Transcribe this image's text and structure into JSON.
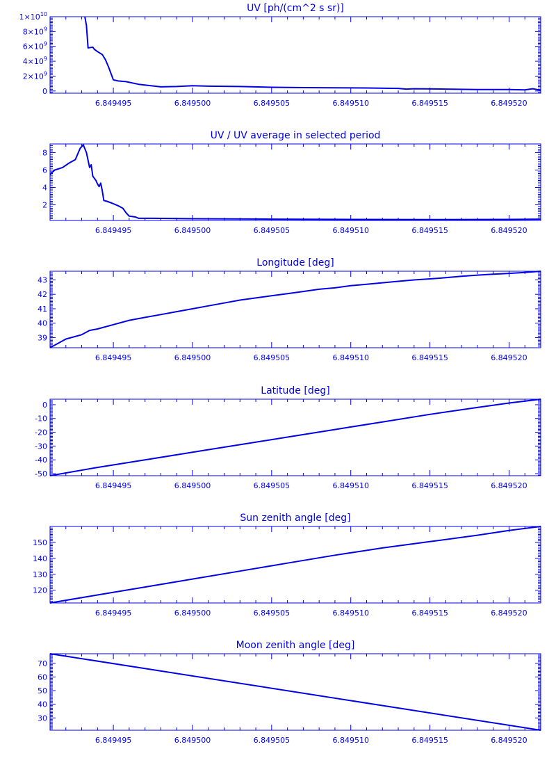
{
  "colors": {
    "axis": "#0000e6",
    "series": "#0000e6",
    "background": "#ffffff"
  },
  "chart_data": [
    {
      "type": "line",
      "title": "UV [ph/(cm^2 s sr)]",
      "xlim": [
        6.849491,
        6.849522
      ],
      "ylim": [
        -0.3,
        10
      ],
      "ytick_values": [
        0,
        2,
        4,
        6,
        8,
        10
      ],
      "ytick_labels": [
        "0",
        "2×10⁹",
        "4×10⁹",
        "6×10⁹",
        "8×10⁹",
        "1×10¹⁰"
      ],
      "xticks": [
        "6.849495",
        "6.849500",
        "6.849505",
        "6.849510",
        "6.849515",
        "6.849520"
      ],
      "series": [
        {
          "x": [
            6.8494932,
            6.8494932,
            6.8494933,
            6.8494933,
            6.8494934,
            6.8494934,
            6.8494937,
            6.8494937,
            6.8494938,
            6.8494938,
            6.849494,
            6.849494,
            6.8494943,
            6.8494943,
            6.8494945,
            6.8494945,
            6.8494947,
            6.8494947,
            6.849495,
            6.849495,
            6.8494953,
            6.8494953,
            6.8494958,
            6.8494958,
            6.8494966,
            6.8494966,
            6.849498,
            6.849499,
            6.8495,
            6.849501,
            6.849503,
            6.849505,
            6.849507,
            6.849509,
            6.849511,
            6.849513,
            6.8495135,
            6.849514,
            6.849516,
            6.849518,
            6.84952,
            6.849521,
            6.8495215,
            6.849522
          ],
          "y": [
            10,
            10,
            8.8,
            8.8,
            5.8,
            5.8,
            5.9,
            5.9,
            5.6,
            5.6,
            5.3,
            5.3,
            4.9,
            4.9,
            4.2,
            4.2,
            3.2,
            3.2,
            1.5,
            1.5,
            1.35,
            1.35,
            1.25,
            1.25,
            0.9,
            0.9,
            0.55,
            0.6,
            0.7,
            0.65,
            0.6,
            0.5,
            0.45,
            0.42,
            0.4,
            0.35,
            0.25,
            0.3,
            0.25,
            0.2,
            0.2,
            0.15,
            0.3,
            0.1
          ]
        }
      ]
    },
    {
      "type": "line",
      "title": "UV / UV average in selected period",
      "xlim": [
        6.849491,
        6.849522
      ],
      "ylim": [
        0.2,
        9
      ],
      "ytick_values": [
        2,
        4,
        6,
        8
      ],
      "ytick_labels": [
        "2",
        "4",
        "6",
        "8"
      ],
      "xticks": [
        "6.849495",
        "6.849500",
        "6.849505",
        "6.849510",
        "6.849515",
        "6.849520"
      ],
      "series": [
        {
          "x": [
            6.849491,
            6.8494913,
            6.8494918,
            6.8494922,
            6.8494926,
            6.8494929,
            6.8494931,
            6.8494933,
            6.8494935,
            6.8494936,
            6.8494937,
            6.8494939,
            6.849494,
            6.8494941,
            6.8494942,
            6.8494943,
            6.8494944,
            6.8494946,
            6.8494949,
            6.8494953,
            6.8494956,
            6.8494958,
            6.849496,
            6.8494964,
            6.8494966,
            6.8494975,
            6.8495,
            6.849505,
            6.84951,
            6.849515,
            6.84952,
            6.849522
          ],
          "y": [
            5.5,
            6.0,
            6.3,
            6.8,
            7.2,
            8.5,
            8.9,
            8.0,
            6.3,
            6.6,
            5.3,
            4.8,
            4.4,
            4.1,
            4.5,
            3.6,
            2.5,
            2.4,
            2.2,
            1.9,
            1.6,
            1.1,
            0.7,
            0.6,
            0.45,
            0.45,
            0.4,
            0.35,
            0.32,
            0.3,
            0.32,
            0.35
          ]
        }
      ]
    },
    {
      "type": "line",
      "title": "Longitude [deg]",
      "xlim": [
        6.849491,
        6.849522
      ],
      "ylim": [
        38.3,
        43.6
      ],
      "ytick_values": [
        39,
        40,
        41,
        42,
        43
      ],
      "ytick_labels": [
        "39",
        "40",
        "41",
        "42",
        "43"
      ],
      "xticks": [
        "6.849495",
        "6.849500",
        "6.849505",
        "6.849510",
        "6.849515",
        "6.849520"
      ],
      "series": [
        {
          "x": [
            6.849491,
            6.8494915,
            6.849492,
            6.849493,
            6.8494935,
            6.849494,
            6.849495,
            6.849496,
            6.849497,
            6.849498,
            6.849499,
            6.8495,
            6.849501,
            6.849502,
            6.849503,
            6.849504,
            6.849505,
            6.849506,
            6.849507,
            6.849508,
            6.849509,
            6.84951,
            6.849511,
            6.849512,
            6.849513,
            6.849514,
            6.849515,
            6.849516,
            6.849517,
            6.849518,
            6.849519,
            6.84952,
            6.849521,
            6.849522
          ],
          "y": [
            38.3,
            38.6,
            38.9,
            39.2,
            39.5,
            39.6,
            39.9,
            40.2,
            40.4,
            40.6,
            40.8,
            41.0,
            41.2,
            41.4,
            41.6,
            41.75,
            41.9,
            42.05,
            42.2,
            42.35,
            42.45,
            42.6,
            42.7,
            42.8,
            42.9,
            43.0,
            43.07,
            43.15,
            43.25,
            43.33,
            43.4,
            43.45,
            43.52,
            43.6
          ]
        }
      ]
    },
    {
      "type": "line",
      "title": "Latitude [deg]",
      "xlim": [
        6.849491,
        6.849522
      ],
      "ylim": [
        -51.5,
        4
      ],
      "ytick_values": [
        0,
        -10,
        -20,
        -30,
        -40,
        -50
      ],
      "ytick_labels": [
        "0",
        "-10",
        "-20",
        "-30",
        "-40",
        "-50"
      ],
      "xticks": [
        "6.849495",
        "6.849500",
        "6.849505",
        "6.849510",
        "6.849515",
        "6.849520"
      ],
      "series": [
        {
          "x": [
            6.849491,
            6.849494,
            6.849497,
            6.8495,
            6.849503,
            6.849506,
            6.849509,
            6.849512,
            6.849515,
            6.849518,
            6.84952,
            6.849522
          ],
          "y": [
            -51.5,
            -45.5,
            -40,
            -34.5,
            -29,
            -23.5,
            -18,
            -12.5,
            -7,
            -2,
            1.2,
            4
          ]
        }
      ]
    },
    {
      "type": "line",
      "title": "Sun zenith angle [deg]",
      "xlim": [
        6.849491,
        6.849522
      ],
      "ylim": [
        112,
        160
      ],
      "ytick_values": [
        120,
        130,
        140,
        150
      ],
      "ytick_labels": [
        "120",
        "130",
        "140",
        "150"
      ],
      "xticks": [
        "6.849495",
        "6.849500",
        "6.849505",
        "6.849510",
        "6.849515",
        "6.849520"
      ],
      "series": [
        {
          "x": [
            6.849491,
            6.849494,
            6.849497,
            6.8495,
            6.849503,
            6.849506,
            6.849509,
            6.849512,
            6.849515,
            6.849518,
            6.84952,
            6.849522
          ],
          "y": [
            112,
            117,
            122,
            127,
            132,
            137,
            142,
            146.5,
            150.5,
            154.5,
            157.5,
            160
          ]
        }
      ]
    },
    {
      "type": "line",
      "title": "Moon zenith angle [deg]",
      "xlim": [
        6.849491,
        6.849522
      ],
      "ylim": [
        21,
        77
      ],
      "ytick_values": [
        30,
        40,
        50,
        60,
        70
      ],
      "ytick_labels": [
        "30",
        "40",
        "50",
        "60",
        "70"
      ],
      "xticks": [
        "6.849495",
        "6.849500",
        "6.849505",
        "6.849510",
        "6.849515",
        "6.849520"
      ],
      "series": [
        {
          "x": [
            6.849491,
            6.849522
          ],
          "y": [
            77,
            21
          ]
        }
      ]
    }
  ]
}
